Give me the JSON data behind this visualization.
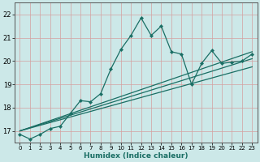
{
  "xlabel": "Humidex (Indice chaleur)",
  "ylabel": "",
  "bg_color": "#cce8e8",
  "grid_color": "#d4a0a0",
  "line_color": "#1a6e64",
  "xlim": [
    -0.5,
    23.5
  ],
  "ylim": [
    16.5,
    22.5
  ],
  "yticks": [
    17,
    18,
    19,
    20,
    21,
    22
  ],
  "xticks": [
    0,
    1,
    2,
    3,
    4,
    5,
    6,
    7,
    8,
    9,
    10,
    11,
    12,
    13,
    14,
    15,
    16,
    17,
    18,
    19,
    20,
    21,
    22,
    23
  ],
  "main_x": [
    0,
    1,
    2,
    3,
    4,
    5,
    6,
    7,
    8,
    9,
    10,
    11,
    12,
    13,
    14,
    15,
    16,
    17,
    18,
    19,
    20,
    21,
    22,
    23
  ],
  "main_y": [
    16.85,
    16.65,
    16.85,
    17.1,
    17.2,
    17.75,
    18.3,
    18.25,
    18.6,
    19.65,
    20.5,
    21.1,
    21.85,
    21.1,
    21.5,
    20.4,
    20.3,
    19.0,
    19.9,
    20.45,
    19.9,
    19.95,
    20.0,
    20.3
  ],
  "ref_line1_x": [
    0,
    23
  ],
  "ref_line1_y": [
    17.0,
    20.4
  ],
  "ref_line2_x": [
    0,
    23
  ],
  "ref_line2_y": [
    17.0,
    20.1
  ],
  "ref_line3_x": [
    0,
    23
  ],
  "ref_line3_y": [
    17.0,
    19.75
  ]
}
